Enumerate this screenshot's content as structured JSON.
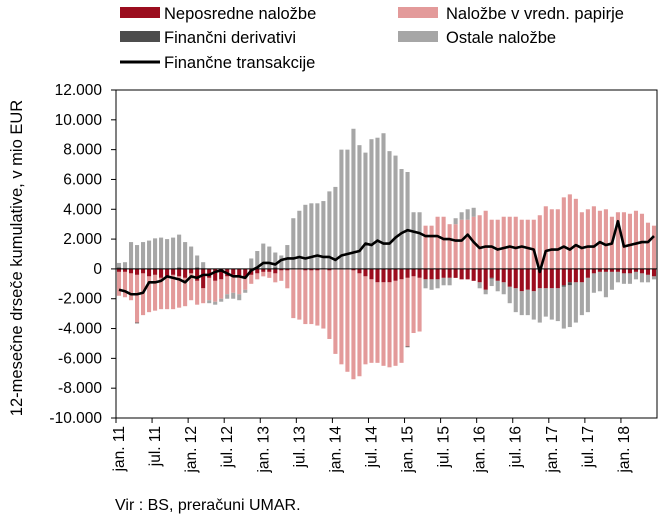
{
  "chart_data": {
    "type": "bar",
    "subtype": "stacked bar with line overlay",
    "title": "",
    "xlabel": "",
    "ylabel": "12-mesečne drseče kumulative, v mio EUR",
    "ylim": [
      -10000,
      12000
    ],
    "yticks": [
      "12.000",
      "10.000",
      "8.000",
      "6.000",
      "4.000",
      "2.000",
      "0",
      "-2.000",
      "-4.000",
      "-6.000",
      "-8.000",
      "-10.000"
    ],
    "ytick_values": [
      12000,
      10000,
      8000,
      6000,
      4000,
      2000,
      0,
      -2000,
      -4000,
      -6000,
      -8000,
      -10000
    ],
    "xtick_labels": [
      "jan. 11",
      "jul. 11",
      "jan. 12",
      "jul. 12",
      "jan. 13",
      "jul. 13",
      "jan. 14",
      "jul. 14",
      "jan. 15",
      "jul. 15",
      "jan. 16",
      "jul. 16",
      "jan. 17",
      "jul. 17",
      "jan. 18"
    ],
    "xtick_month_index": [
      0,
      6,
      12,
      18,
      24,
      30,
      36,
      42,
      48,
      54,
      60,
      66,
      72,
      78,
      84
    ],
    "grid": false,
    "legend_position": "top",
    "source": "Vir : BS, preračuni UMAR.",
    "months": 90,
    "series": [
      {
        "name": "Neposredne naložbe",
        "kind": "bar",
        "color": "#9b0d1e",
        "values": [
          -200,
          -200,
          -300,
          -400,
          -300,
          -500,
          -400,
          -600,
          -500,
          -400,
          -500,
          -600,
          -300,
          -800,
          -1300,
          -600,
          -800,
          -700,
          -500,
          -400,
          -500,
          -600,
          -400,
          -300,
          -200,
          -200,
          -300,
          -100,
          -100,
          0,
          0,
          -100,
          -100,
          -100,
          0,
          -100,
          0,
          0,
          0,
          -100,
          -300,
          -500,
          -700,
          -900,
          -900,
          -900,
          -800,
          -700,
          -600,
          -500,
          -600,
          -700,
          -700,
          -700,
          -600,
          -600,
          -600,
          -700,
          -700,
          -800,
          -900,
          -1400,
          -600,
          -800,
          -900,
          -1200,
          -1300,
          -1500,
          -1400,
          -1500,
          -1300,
          -1300,
          -1300,
          -1300,
          -1100,
          -900,
          -900,
          -900,
          -600,
          -300,
          -200,
          -200,
          -200,
          -200,
          -300,
          -300,
          -200,
          -300,
          -400,
          -500
        ]
      },
      {
        "name": "Naložbe v vredn. papirje",
        "kind": "bar",
        "color": "#e39a9a",
        "values": [
          -1600,
          -1700,
          -1800,
          -3200,
          -2800,
          -2400,
          -2400,
          -2100,
          -2200,
          -2300,
          -2100,
          -1900,
          -1800,
          -1600,
          -1000,
          -1500,
          -1400,
          -1300,
          -1200,
          -1200,
          -1200,
          -800,
          -600,
          -400,
          -300,
          -400,
          -600,
          -700,
          -1200,
          -3300,
          -3400,
          -3600,
          -3600,
          -3700,
          -4000,
          -4600,
          -5700,
          -6400,
          -6900,
          -7300,
          -6900,
          -5900,
          -5600,
          -5400,
          -5600,
          -5700,
          -5700,
          -5600,
          -4600,
          -3800,
          -3600,
          2900,
          2900,
          3500,
          3500,
          3000,
          3000,
          3300,
          3300,
          3500,
          3600,
          3900,
          3300,
          3300,
          3500,
          3500,
          3500,
          3300,
          3300,
          3300,
          3600,
          4200,
          4000,
          4000,
          4800,
          5000,
          4700,
          3800,
          4000,
          4200,
          3900,
          4000,
          3500,
          3800,
          3800,
          3700,
          3900,
          3700,
          3100,
          2900
        ]
      },
      {
        "name": "Finančni derivativi",
        "kind": "bar",
        "color": "#4d4d4d",
        "values": [
          100,
          50,
          0,
          -50,
          0,
          0,
          50,
          0,
          0,
          0,
          100,
          0,
          0,
          100,
          50,
          0,
          0,
          0,
          0,
          0,
          0,
          0,
          0,
          0,
          0,
          0,
          100,
          0,
          0,
          0,
          0,
          0,
          0,
          0,
          50,
          0,
          0,
          0,
          0,
          0,
          0,
          0,
          0,
          0,
          0,
          0,
          0,
          0,
          -50,
          0,
          0,
          0,
          0,
          0,
          0,
          0,
          0,
          0,
          0,
          0,
          0,
          0,
          -50,
          0,
          0,
          0,
          0,
          0,
          0,
          0,
          0,
          0,
          0,
          0,
          -100,
          -200,
          0,
          0,
          0,
          0,
          0,
          0,
          0,
          0,
          0,
          0,
          0,
          0,
          0,
          0
        ]
      },
      {
        "name": "Ostale naložbe",
        "kind": "bar",
        "color": "#a6a6a6",
        "values": [
          300,
          400,
          1800,
          1600,
          1800,
          1900,
          2000,
          2100,
          2000,
          2100,
          2200,
          1800,
          1500,
          800,
          400,
          -200,
          -200,
          -200,
          -300,
          -400,
          -400,
          -200,
          700,
          1200,
          1700,
          1500,
          1000,
          900,
          1600,
          3400,
          3900,
          4300,
          4400,
          4400,
          4500,
          5200,
          5500,
          8000,
          8000,
          9400,
          8300,
          7800,
          8700,
          8800,
          9100,
          7900,
          7600,
          6700,
          6500,
          3800,
          3800,
          -600,
          -700,
          -600,
          -500,
          -500,
          400,
          500,
          700,
          600,
          -400,
          -300,
          -500,
          -700,
          -800,
          -1100,
          -1600,
          -1600,
          -1700,
          -1900,
          -2300,
          -1900,
          -2100,
          -2200,
          -2800,
          -2800,
          -2700,
          -2200,
          -2300,
          -1300,
          -1300,
          -1700,
          -1200,
          -700,
          -700,
          -700,
          -500,
          -600,
          -500,
          -200
        ]
      },
      {
        "name": "Finančne transakcije",
        "kind": "line",
        "color": "#000000",
        "values": [
          -1400,
          -1500,
          -1700,
          -1700,
          -1600,
          -900,
          -900,
          -800,
          -500,
          -600,
          -700,
          -900,
          -500,
          -600,
          -400,
          -400,
          -200,
          -100,
          -300,
          -500,
          -500,
          -600,
          -100,
          100,
          400,
          400,
          300,
          600,
          700,
          700,
          800,
          700,
          800,
          900,
          800,
          800,
          600,
          900,
          1000,
          1100,
          1200,
          1700,
          1600,
          1900,
          1700,
          1700,
          2100,
          2400,
          2600,
          2500,
          2400,
          2200,
          2200,
          2200,
          2000,
          2000,
          1900,
          1900,
          2300,
          1800,
          1400,
          1500,
          1500,
          1300,
          1400,
          1500,
          1400,
          1500,
          1400,
          1300,
          -200,
          1200,
          1300,
          1300,
          1500,
          1300,
          1600,
          1400,
          1500,
          1500,
          1800,
          1600,
          1700,
          3200,
          1500,
          1600,
          1700,
          1800,
          1800,
          2200
        ]
      }
    ]
  }
}
